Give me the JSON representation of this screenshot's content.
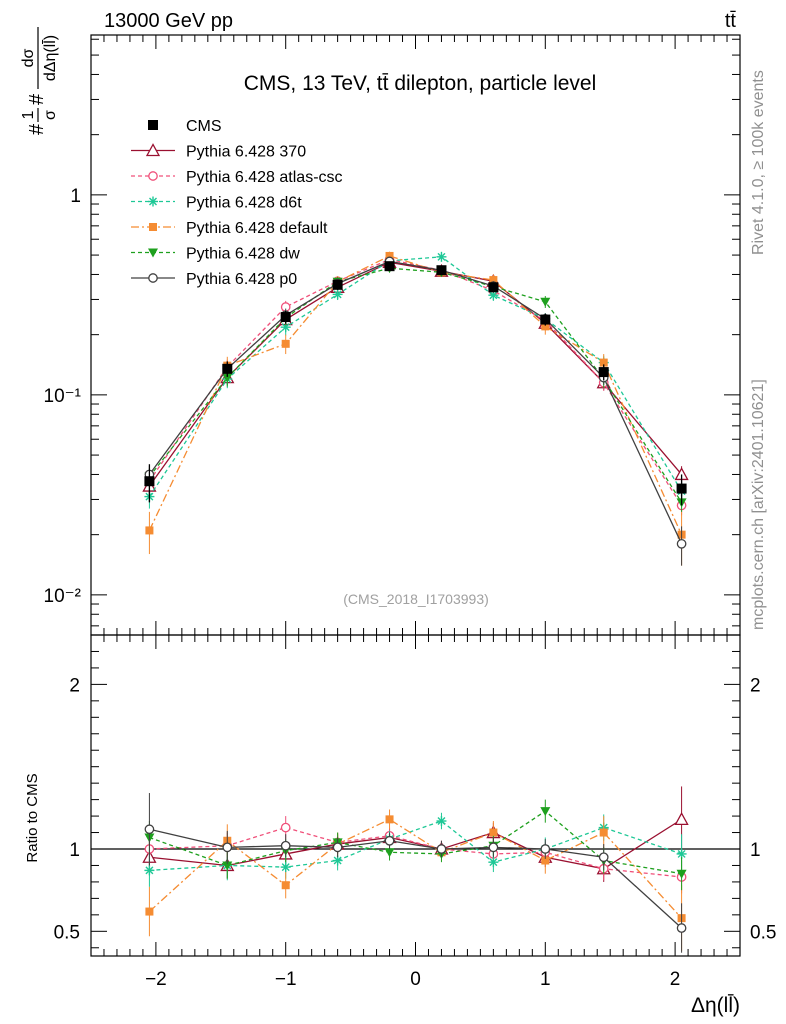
{
  "header": {
    "left": "13000 GeV pp",
    "right": "tt̄"
  },
  "side_labels": {
    "rivet": "Rivet 4.1.0, ≥ 100k events",
    "source": "mcplots.cern.ch [arXiv:2401.10621]"
  },
  "chart_data": {
    "type": "line",
    "title": "CMS, 13 TeV, tt̄ dilepton, particle level",
    "analysis_id": "(CMS_2018_I1703993)",
    "xlabel": "Δη(ll̄)",
    "ylabel_top": "#1/σ# dσ/dΔη(ll̄)",
    "ylabel_top_parts": {
      "prefix": "#",
      "num1": "1",
      "den1": "σ",
      "mid": "#",
      "num2": "dσ",
      "den2": "dΔη(ll̄)"
    },
    "ylabel_ratio": "Ratio to CMS",
    "xlim": [
      -2.5,
      2.5
    ],
    "ylim_top": [
      0.0063,
      6.3
    ],
    "yscale_top": "log",
    "ylim_ratio": [
      0.35,
      2.3
    ],
    "x_ticks": [
      -2,
      -1,
      0,
      1,
      2
    ],
    "x_tick_labels": [
      "−2",
      "−1",
      "0",
      "1",
      "2"
    ],
    "y_top_ticks": [
      0.01,
      0.1,
      1
    ],
    "y_top_tick_labels": [
      "10⁻²",
      "10⁻¹",
      "1"
    ],
    "y_ratio_ticks": [
      0.5,
      1,
      2
    ],
    "y_ratio_tick_labels": [
      "0.5",
      "1",
      "2"
    ],
    "x": [
      -2.05,
      -1.45,
      -1.0,
      -0.6,
      -0.2,
      0.2,
      0.6,
      1.0,
      1.45,
      2.05
    ],
    "data": {
      "name": "CMS",
      "values": [
        0.037,
        0.135,
        0.245,
        0.355,
        0.44,
        0.42,
        0.345,
        0.238,
        0.13,
        0.034
      ],
      "errors": [
        0.008,
        0.012,
        0.018,
        0.02,
        0.02,
        0.02,
        0.02,
        0.016,
        0.012,
        0.006
      ]
    },
    "series": [
      {
        "name": "Pythia 6.428 370",
        "color": "#9a1030",
        "dash": "",
        "marker": "triangle-open",
        "values": [
          0.035,
          0.122,
          0.238,
          0.345,
          0.46,
          0.415,
          0.37,
          0.228,
          0.115,
          0.04
        ],
        "errors": [
          0.003,
          0.01,
          0.015,
          0.02,
          0.02,
          0.02,
          0.02,
          0.015,
          0.01,
          0.004
        ]
      },
      {
        "name": "Pythia 6.428 atlas-csc",
        "color": "#f0507a",
        "dash": "4,3",
        "marker": "circle-open",
        "values": [
          0.037,
          0.138,
          0.275,
          0.37,
          0.475,
          0.42,
          0.332,
          0.235,
          0.115,
          0.028
        ],
        "errors": [
          0.004,
          0.012,
          0.02,
          0.02,
          0.02,
          0.02,
          0.02,
          0.015,
          0.01,
          0.003
        ]
      },
      {
        "name": "Pythia 6.428 d6t",
        "color": "#1ec896",
        "dash": "4,3",
        "marker": "star",
        "values": [
          0.031,
          0.12,
          0.218,
          0.318,
          0.468,
          0.49,
          0.315,
          0.24,
          0.145,
          0.033
        ],
        "errors": [
          0.004,
          0.012,
          0.02,
          0.02,
          0.02,
          0.02,
          0.02,
          0.016,
          0.012,
          0.004
        ]
      },
      {
        "name": "Pythia 6.428 default",
        "color": "#f58c32",
        "dash": "8,3,2,3",
        "marker": "square-filled",
        "values": [
          0.021,
          0.14,
          0.18,
          0.368,
          0.495,
          0.41,
          0.375,
          0.22,
          0.145,
          0.02
        ],
        "errors": [
          0.005,
          0.015,
          0.02,
          0.025,
          0.025,
          0.02,
          0.025,
          0.02,
          0.015,
          0.006
        ]
      },
      {
        "name": "Pythia 6.428 dw",
        "color": "#1ea01e",
        "dash": "4,3",
        "marker": "triangle-down-filled",
        "values": [
          0.039,
          0.122,
          0.243,
          0.368,
          0.43,
          0.41,
          0.348,
          0.292,
          0.12,
          0.029
        ],
        "errors": [
          0.004,
          0.012,
          0.02,
          0.02,
          0.02,
          0.02,
          0.02,
          0.02,
          0.012,
          0.003
        ]
      },
      {
        "name": "Pythia 6.428 p0",
        "color": "#404040",
        "dash": "",
        "marker": "circle-open",
        "values": [
          0.04,
          0.135,
          0.25,
          0.36,
          0.465,
          0.42,
          0.35,
          0.24,
          0.122,
          0.018
        ],
        "errors": [
          0.004,
          0.012,
          0.02,
          0.02,
          0.02,
          0.02,
          0.02,
          0.016,
          0.01,
          0.004
        ]
      }
    ],
    "ratios": [
      {
        "name": "Pythia 6.428 370",
        "values": [
          0.95,
          0.9,
          0.97,
          1.03,
          1.07,
          1.0,
          1.1,
          0.95,
          0.88,
          1.18
        ],
        "errors": [
          0.09,
          0.08,
          0.07,
          0.06,
          0.05,
          0.05,
          0.06,
          0.06,
          0.08,
          0.2
        ]
      },
      {
        "name": "Pythia 6.428 atlas-csc",
        "values": [
          1.0,
          1.02,
          1.13,
          1.04,
          1.08,
          1.0,
          0.97,
          0.98,
          0.88,
          0.83
        ],
        "errors": [
          0.1,
          0.08,
          0.07,
          0.06,
          0.05,
          0.05,
          0.06,
          0.06,
          0.07,
          0.1
        ]
      },
      {
        "name": "Pythia 6.428 d6t",
        "values": [
          0.87,
          0.9,
          0.89,
          0.93,
          1.06,
          1.17,
          0.92,
          1.0,
          1.13,
          0.97
        ],
        "errors": [
          0.1,
          0.09,
          0.07,
          0.06,
          0.05,
          0.05,
          0.06,
          0.07,
          0.08,
          0.12
        ]
      },
      {
        "name": "Pythia 6.428 default",
        "values": [
          0.62,
          1.05,
          0.78,
          1.03,
          1.18,
          0.98,
          1.1,
          0.93,
          1.1,
          0.58
        ],
        "errors": [
          0.15,
          0.1,
          0.08,
          0.07,
          0.06,
          0.05,
          0.07,
          0.08,
          0.1,
          0.2
        ]
      },
      {
        "name": "Pythia 6.428 dw",
        "values": [
          1.07,
          0.9,
          0.99,
          1.04,
          0.98,
          0.97,
          1.02,
          1.23,
          0.93,
          0.85
        ],
        "errors": [
          0.1,
          0.08,
          0.07,
          0.06,
          0.05,
          0.05,
          0.06,
          0.07,
          0.08,
          0.1
        ]
      },
      {
        "name": "Pythia 6.428 p0",
        "values": [
          1.12,
          1.01,
          1.02,
          1.01,
          1.05,
          1.0,
          1.01,
          1.0,
          0.95,
          0.52
        ],
        "errors": [
          0.22,
          0.1,
          0.07,
          0.06,
          0.05,
          0.05,
          0.06,
          0.06,
          0.08,
          0.15
        ]
      }
    ],
    "legend": {
      "placement": "top-left",
      "entries": [
        "CMS",
        "Pythia 6.428 370",
        "Pythia 6.428 atlas-csc",
        "Pythia 6.428 d6t",
        "Pythia 6.428 default",
        "Pythia 6.428 dw",
        "Pythia 6.428 p0"
      ]
    }
  }
}
